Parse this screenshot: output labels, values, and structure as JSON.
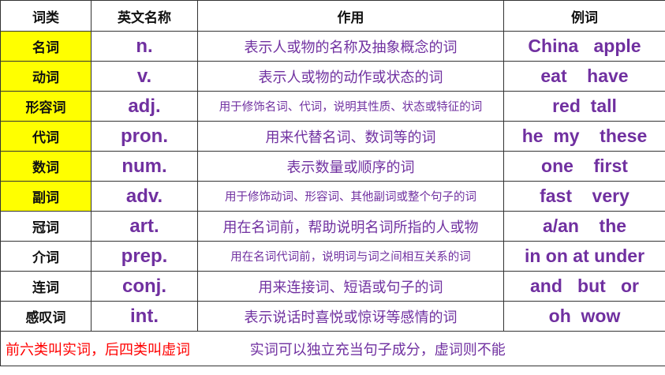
{
  "headers": [
    "词类",
    "英文名称",
    "作用",
    "例词"
  ],
  "rows": [
    {
      "pos": "名词",
      "abbr": "n.",
      "desc": "表示人或物的名称及抽象概念的词",
      "examples": "China   apple",
      "highlight": true
    },
    {
      "pos": "动词",
      "abbr": "v.",
      "desc": "表示人或物的动作或状态的词",
      "examples": "eat    have",
      "highlight": true
    },
    {
      "pos": "形容词",
      "abbr": "adj.",
      "desc": "用于修饰名词、代词，说明其性质、状态或特征的词",
      "examples": "red  tall",
      "highlight": true
    },
    {
      "pos": "代词",
      "abbr": "pron.",
      "desc": "用来代替名词、数词等的词",
      "examples": "he  my    these",
      "highlight": true
    },
    {
      "pos": "数词",
      "abbr": "num.",
      "desc": "表示数量或顺序的词",
      "examples": "one    first",
      "highlight": true
    },
    {
      "pos": "副词",
      "abbr": "adv.",
      "desc": "用于修饰动词、形容词、其他副词或整个句子的词",
      "examples": "fast    very",
      "highlight": true
    },
    {
      "pos": "冠词",
      "abbr": "art.",
      "desc": "用在名词前，帮助说明名词所指的人或物",
      "examples": "a/an    the",
      "highlight": false
    },
    {
      "pos": "介词",
      "abbr": "prep.",
      "desc": "用在名词代词前，说明词与词之间相互关系的词",
      "examples": "in on at under",
      "highlight": false
    },
    {
      "pos": "连词",
      "abbr": "conj.",
      "desc": "用来连接词、短语或句子的词",
      "examples": "and   but   or",
      "highlight": false
    },
    {
      "pos": "感叹词",
      "abbr": "int.",
      "desc": "表示说话时喜悦或惊讶等感情的词",
      "examples": "oh  wow",
      "highlight": false
    }
  ],
  "footer": {
    "note_red": "前六类叫实词，后四类叫虚词",
    "note_purple": "实词可以独立充当句子成分，虚词则不能"
  },
  "colors": {
    "highlight": "#ffff00",
    "text_purple": "#7030a0",
    "note_red": "#ff0000"
  }
}
